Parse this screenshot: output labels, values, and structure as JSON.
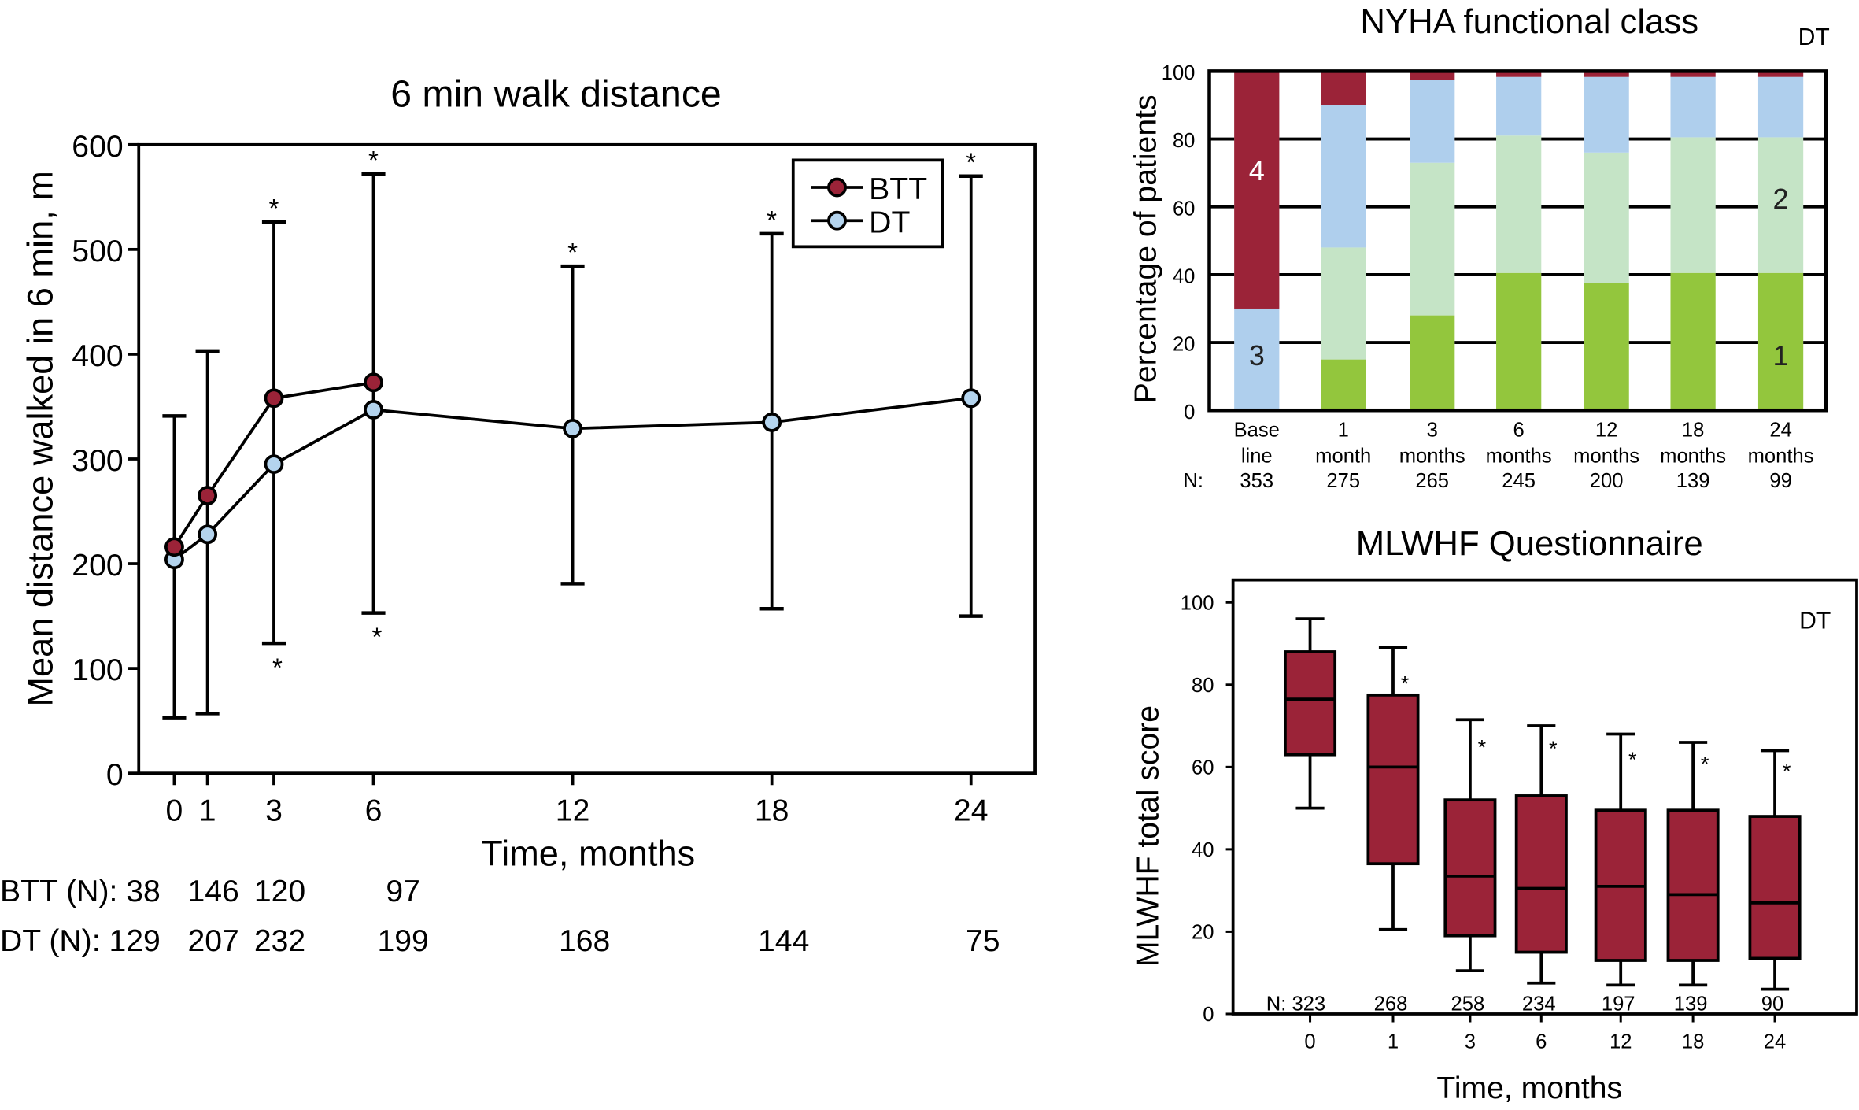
{
  "colors": {
    "btt": "#9b2338",
    "dt_line": "#b4d4ee",
    "class4": "#9b2338",
    "class3": "#afcfed",
    "class2": "#c5e4c6",
    "class1": "#93c63d",
    "box": "#9b2338"
  },
  "chart_data": [
    {
      "type": "line",
      "title": "6 min walk distance",
      "xlabel": "Time, months",
      "ylabel": "Mean distance walked in 6 min, m",
      "ylim": [
        0,
        600
      ],
      "yticks": [
        "0",
        "100",
        "200",
        "300",
        "400",
        "500",
        "600"
      ],
      "x": [
        0,
        1,
        3,
        6,
        12,
        18,
        24
      ],
      "legend": "top-right",
      "series": [
        {
          "name": "BTT",
          "x": [
            0,
            1,
            3,
            6
          ],
          "values": [
            216,
            265,
            358,
            373
          ]
        },
        {
          "name": "DT",
          "x": [
            0,
            1,
            3,
            6,
            12,
            18,
            24
          ],
          "values": [
            204,
            228,
            295,
            347,
            329,
            335,
            358
          ]
        }
      ],
      "error_bars": {
        "x": [
          0,
          1,
          3,
          6,
          12,
          18,
          24
        ],
        "low": [
          53,
          57,
          124,
          153,
          181,
          157,
          150
        ],
        "high": [
          341,
          403,
          526,
          572,
          484,
          515,
          570
        ]
      },
      "significance_top": [
        3,
        6,
        12,
        18,
        24
      ],
      "significance_bottom": [
        3,
        6
      ],
      "star": "*",
      "n_rows": [
        {
          "label": "BTT (N): 38",
          "values": [
            "146",
            "120",
            "97"
          ],
          "x": [
            1,
            3,
            6
          ]
        },
        {
          "label": "DT (N): 129",
          "values": [
            "207",
            "232",
            "199",
            "168",
            "144",
            "75"
          ],
          "x": [
            1,
            3,
            6,
            12,
            18,
            24
          ]
        }
      ]
    },
    {
      "type": "bar",
      "stacked": true,
      "title": "NYHA functional class",
      "annotation": "DT",
      "ylabel": "Percentage of patients",
      "ylim": [
        0,
        100
      ],
      "yticks": [
        "0",
        "20",
        "40",
        "60",
        "80",
        "100"
      ],
      "grid": true,
      "categories": [
        [
          "Base",
          "line"
        ],
        [
          "1",
          "month"
        ],
        [
          "3",
          "months"
        ],
        [
          "6",
          "months"
        ],
        [
          "12",
          "months"
        ],
        [
          "18",
          "months"
        ],
        [
          "24",
          "months"
        ]
      ],
      "n_label": "N:",
      "n": [
        "353",
        "275",
        "265",
        "245",
        "200",
        "139",
        "99"
      ],
      "series": [
        {
          "name": "1",
          "values": [
            0,
            15,
            28,
            40.5,
            37.5,
            40.5,
            40.5
          ]
        },
        {
          "name": "2",
          "values": [
            0,
            33,
            45,
            40.5,
            38.5,
            40,
            40
          ]
        },
        {
          "name": "3",
          "values": [
            30,
            42,
            24.5,
            17.3,
            22.3,
            17.8,
            17.8
          ]
        },
        {
          "name": "4",
          "values": [
            70,
            10,
            2.5,
            1.7,
            1.7,
            1.7,
            1.7
          ]
        }
      ],
      "bar_labels": [
        {
          "text": "4",
          "bar": 0
        },
        {
          "text": "3",
          "bar": 0
        },
        {
          "text": "2",
          "bar": 6
        },
        {
          "text": "1",
          "bar": 6
        }
      ]
    },
    {
      "type": "box",
      "title": "MLWHF Questionnaire",
      "annotation": "DT",
      "xlabel": "Time, months",
      "ylabel": "MLWHF total score",
      "ylim": [
        0,
        100
      ],
      "yticks": [
        "0",
        "20",
        "40",
        "60",
        "80",
        "100"
      ],
      "categories": [
        "0",
        "1",
        "3",
        "6",
        "12",
        "18",
        "24"
      ],
      "n": [
        "N: 323",
        "268",
        "258",
        "234",
        "197",
        "139",
        "90"
      ],
      "boxes": [
        {
          "min": 50,
          "q1": 63,
          "median": 76.5,
          "q3": 88,
          "max": 96
        },
        {
          "min": 20.5,
          "q1": 36.5,
          "median": 60,
          "q3": 77.5,
          "max": 89
        },
        {
          "min": 10.5,
          "q1": 19,
          "median": 33.5,
          "q3": 52,
          "max": 71.5
        },
        {
          "min": 7.5,
          "q1": 15,
          "median": 30.5,
          "q3": 53,
          "max": 70
        },
        {
          "min": 7,
          "q1": 13,
          "median": 31,
          "q3": 49.5,
          "max": 68
        },
        {
          "min": 7,
          "q1": 13,
          "median": 29,
          "q3": 49.5,
          "max": 66
        },
        {
          "min": 6,
          "q1": 13.5,
          "median": 27,
          "q3": 48,
          "max": 64
        }
      ],
      "significance": [
        1,
        2,
        3,
        4,
        5,
        6
      ],
      "star": "*"
    }
  ]
}
